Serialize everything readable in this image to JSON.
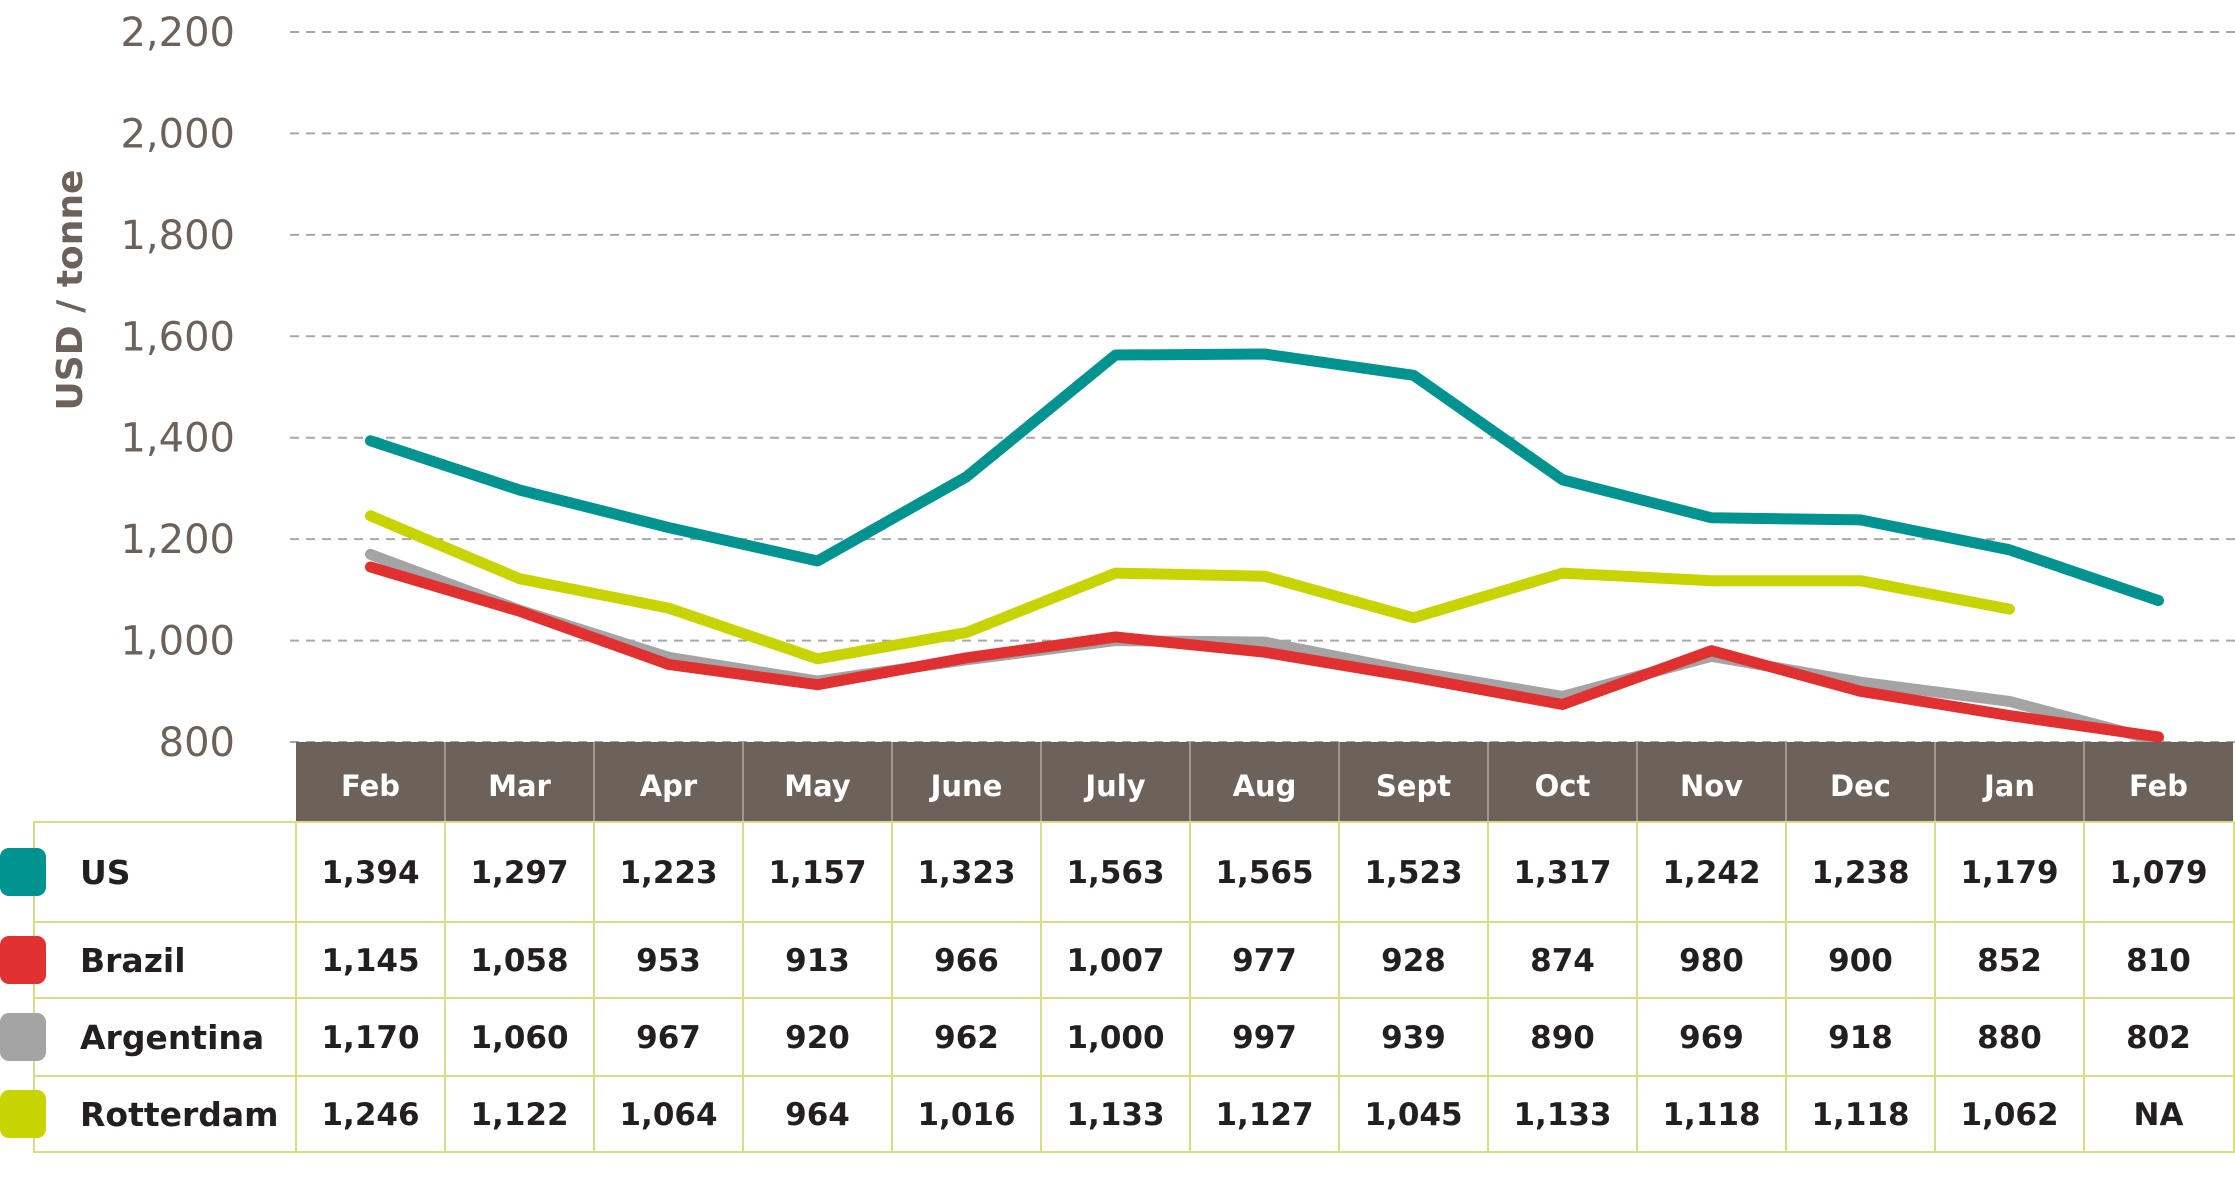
{
  "chart_data": {
    "type": "line",
    "ylabel": "USD / tonne",
    "ylim": [
      800,
      2200
    ],
    "yticks": [
      "800",
      "1,000",
      "1,200",
      "1,400",
      "1,600",
      "1,800",
      "2,000",
      "2,200"
    ],
    "grid": true,
    "categories": [
      "Feb",
      "Mar",
      "Apr",
      "May",
      "June",
      "July",
      "Aug",
      "Sept",
      "Oct",
      "Nov",
      "Dec",
      "Jan",
      "Feb"
    ],
    "series": [
      {
        "name": "US",
        "color": "#00938f",
        "values": [
          1394,
          1297,
          1223,
          1157,
          1323,
          1563,
          1565,
          1523,
          1317,
          1242,
          1238,
          1179,
          1079
        ],
        "labels": [
          "1,394",
          "1,297",
          "1,223",
          "1,157",
          "1,323",
          "1,563",
          "1,565",
          "1,523",
          "1,317",
          "1,242",
          "1,238",
          "1,179",
          "1,079"
        ]
      },
      {
        "name": "Brazil",
        "color": "#e03030",
        "values": [
          1145,
          1058,
          953,
          913,
          966,
          1007,
          977,
          928,
          874,
          980,
          900,
          852,
          810
        ],
        "labels": [
          "1,145",
          "1,058",
          "953",
          "913",
          "966",
          "1,007",
          "977",
          "928",
          "874",
          "980",
          "900",
          "852",
          "810"
        ]
      },
      {
        "name": "Argentina",
        "color": "#a4a4a4",
        "values": [
          1170,
          1060,
          967,
          920,
          962,
          1000,
          997,
          939,
          890,
          969,
          918,
          880,
          802
        ],
        "labels": [
          "1,170",
          "1,060",
          "967",
          "920",
          "962",
          "1,000",
          "997",
          "939",
          "890",
          "969",
          "918",
          "880",
          "802"
        ]
      },
      {
        "name": "Rotterdam",
        "color": "#c8d400",
        "values": [
          1246,
          1122,
          1064,
          964,
          1016,
          1133,
          1127,
          1045,
          1133,
          1118,
          1118,
          1062,
          null
        ],
        "labels": [
          "1,246",
          "1,122",
          "1,064",
          "964",
          "1,016",
          "1,133",
          "1,127",
          "1,045",
          "1,133",
          "1,118",
          "1,118",
          "1,062",
          "NA"
        ]
      }
    ]
  }
}
